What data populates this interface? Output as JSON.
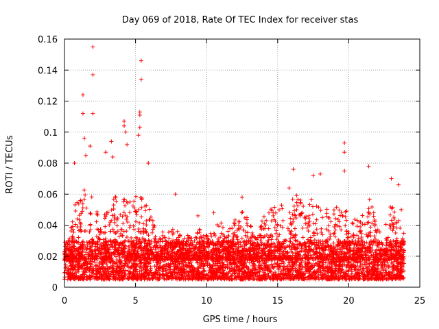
{
  "chart_data": {
    "type": "scatter",
    "title": "Day 069 of 2018, Rate Of TEC Index for receiver stas",
    "xlabel": "GPS time / hours",
    "ylabel": "ROTI / TECUs",
    "xlim": [
      0,
      25
    ],
    "ylim": [
      0,
      0.16
    ],
    "xticks": [
      0,
      5,
      10,
      15,
      20,
      25
    ],
    "xtick_labels": [
      "0",
      "5",
      "10",
      "15",
      "20",
      "25"
    ],
    "yticks": [
      0,
      0.02,
      0.04,
      0.06,
      0.08,
      0.1,
      0.12,
      0.14,
      0.16
    ],
    "ytick_labels": [
      "0",
      "0.02",
      "0.04",
      "0.06",
      "0.08",
      "0.1",
      "0.12",
      "0.14",
      "0.16"
    ],
    "grid": true,
    "marker": "+",
    "marker_color": "#ff0000",
    "data_x_range": [
      0,
      23.9
    ],
    "dense_band": [
      0.005,
      0.03
    ],
    "series": [
      {
        "name": "ROTI",
        "notable_points": [
          {
            "x": 2.0,
            "y": 0.155
          },
          {
            "x": 5.4,
            "y": 0.146
          },
          {
            "x": 2.0,
            "y": 0.137
          },
          {
            "x": 5.4,
            "y": 0.134
          },
          {
            "x": 1.3,
            "y": 0.124
          },
          {
            "x": 1.3,
            "y": 0.112
          },
          {
            "x": 2.0,
            "y": 0.112
          },
          {
            "x": 5.3,
            "y": 0.113
          },
          {
            "x": 5.3,
            "y": 0.111
          },
          {
            "x": 4.2,
            "y": 0.107
          },
          {
            "x": 4.2,
            "y": 0.104
          },
          {
            "x": 5.3,
            "y": 0.103
          },
          {
            "x": 4.3,
            "y": 0.1
          },
          {
            "x": 5.2,
            "y": 0.098
          },
          {
            "x": 1.4,
            "y": 0.096
          },
          {
            "x": 4.4,
            "y": 0.092
          },
          {
            "x": 1.8,
            "y": 0.091
          },
          {
            "x": 3.3,
            "y": 0.094
          },
          {
            "x": 19.7,
            "y": 0.093
          },
          {
            "x": 19.7,
            "y": 0.087
          },
          {
            "x": 1.5,
            "y": 0.085
          },
          {
            "x": 3.4,
            "y": 0.084
          },
          {
            "x": 2.9,
            "y": 0.087
          },
          {
            "x": 5.9,
            "y": 0.08
          },
          {
            "x": 0.7,
            "y": 0.08
          },
          {
            "x": 21.4,
            "y": 0.078
          },
          {
            "x": 16.1,
            "y": 0.076
          },
          {
            "x": 19.7,
            "y": 0.075
          },
          {
            "x": 17.5,
            "y": 0.072
          },
          {
            "x": 23.0,
            "y": 0.07
          },
          {
            "x": 18.0,
            "y": 0.073
          },
          {
            "x": 23.5,
            "y": 0.066
          },
          {
            "x": 15.8,
            "y": 0.064
          },
          {
            "x": 7.8,
            "y": 0.06
          },
          {
            "x": 12.5,
            "y": 0.058
          },
          {
            "x": 9.4,
            "y": 0.046
          },
          {
            "x": 10.5,
            "y": 0.048
          },
          {
            "x": 23.7,
            "y": 0.05
          }
        ]
      }
    ]
  }
}
